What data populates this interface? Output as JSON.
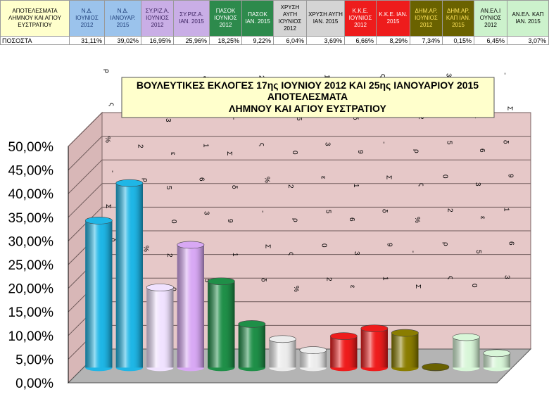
{
  "sheet": {
    "row_label_header": "ΑΠΟΤΕΛΕΣΜΑΤΑ ΛΗΜΝΟΥ ΚΑΙ ΑΓΙΟΥ ΕΥΣΤΡΑΤΙΟΥ",
    "row_label_values": "ΠΟΣΟΣΤΑ",
    "columns": [
      {
        "label": "Ν.Δ. ΙΟΥΝΙΟΣ 2012",
        "value": "31,11%",
        "bg": "#9bc3ec",
        "fg": "#1f3f7a"
      },
      {
        "label": "Ν.Δ. ΙΑΝΟΥΑΡ. 2015",
        "value": "39,02%",
        "bg": "#9bc3ec",
        "fg": "#1f3f7a"
      },
      {
        "label": "ΣΥ.ΡΙΖ.Α. ΙΟΥΝΙΟΣ 2012",
        "value": "16,95%",
        "bg": "#c9aee6",
        "fg": "#3b2260"
      },
      {
        "label": "ΣΥ.ΡΙΖ.Α. ΙΑΝ. 2015",
        "value": "25,96%",
        "bg": "#c9aee6",
        "fg": "#3b2260"
      },
      {
        "label": "ΠΑΣΟΚ ΙΟΥΝΙΟΣ 2012",
        "value": "18,25%",
        "bg": "#2d8a4c",
        "fg": "#ffffff"
      },
      {
        "label": "ΠΑΣΟΚ ΙΑΝ. 2015",
        "value": "9,22%",
        "bg": "#2d8a4c",
        "fg": "#ffffff"
      },
      {
        "label": "ΧΡΥΣΗ ΑΥΓΗ ΙΟΥΝΙΟΣ 2012",
        "value": "6,04%",
        "bg": "#d4d4d4",
        "fg": "#000000"
      },
      {
        "label": "ΧΡΥΣΗ ΑΥΓΗ ΙΑΝ. 2015",
        "value": "3,69%",
        "bg": "#d4d4d4",
        "fg": "#000000"
      },
      {
        "label": "Κ.Κ.Ε. ΙΟΥΝΙΟΣ 2012",
        "value": "6,66%",
        "bg": "#ee1c1c",
        "fg": "#ffffff"
      },
      {
        "label": "Κ.Κ.Ε. ΙΑΝ. 2015",
        "value": "8,29%",
        "bg": "#ee1c1c",
        "fg": "#ffffff"
      },
      {
        "label": "ΔΗΜ.ΑΡ. ΙΟΥΝΙΟΣ 2012",
        "value": "7,34%",
        "bg": "#6a6200",
        "fg": "#ffe45a"
      },
      {
        "label": "ΔΗΜ.ΑΡ. ΚΑΠ ΙΑΝ. 2015",
        "value": "0,15%",
        "bg": "#6a6200",
        "fg": "#ffe45a"
      },
      {
        "label": "ΑΝ.ΕΛ.Ι ΟΥΝΙΟΣ 2012",
        "value": "6,45%",
        "bg": "#ccf2cc",
        "fg": "#000000"
      },
      {
        "label": "ΑΝ.ΕΛ. ΚΑΠ ΙΑΝ. 2015",
        "value": "3,07%",
        "bg": "#ccf2cc",
        "fg": "#000000"
      }
    ]
  },
  "chart_data": {
    "type": "bar",
    "title_lines": [
      "ΒΟΥΛΕΥΤΙΚΕΣ ΕΚΛΟΓΕΣ 17ης ΙΟΥΝΙΟΥ 2012 ΚΑΙ 25ης ΙΑΝΟΥΑΡΙΟΥ 2015",
      "ΑΠΟΤΕΛΕΣΜΑΤΑ",
      "ΛΗΜΝΟΥ ΚΑΙ ΑΓΙΟΥ ΕΥΣΤΡΑΤΙΟΥ"
    ],
    "categories": [
      "Ν.Δ. ΙΟΥΝΙΟΣ 2012",
      "Ν.Δ. ΙΑΝΟΥΑΡ. 2015",
      "ΣΥ.ΡΙΖ.Α. ΙΟΥΝΙΟΣ 2012",
      "ΣΥ.ΡΙΖ.Α. ΙΑΝ. 2015",
      "ΠΑΣΟΚ ΙΟΥΝΙΟΣ 2012",
      "ΠΑΣΟΚ ΙΑΝ. 2015",
      "ΧΡΥΣΗ ΑΥΓΗ ΙΟΥΝΙΟΣ 2012",
      "ΧΡΥΣΗ ΑΥΓΗ ΙΑΝ. 2015",
      "Κ.Κ.Ε. ΙΟΥΝΙΟΣ 2012",
      "Κ.Κ.Ε. ΙΑΝ. 2015",
      "ΔΗΜ.ΑΡ. ΙΟΥΝΙΟΣ 2012",
      "ΔΗΜ.ΑΡ. ΚΑΠ ΙΑΝ. 2015",
      "ΑΝ.ΕΛ.Ι ΟΥΝΙΟΣ 2012",
      "ΑΝ.ΕΛ. ΚΑΠ ΙΑΝ. 2015"
    ],
    "values": [
      31.11,
      39.02,
      16.95,
      25.96,
      18.25,
      9.22,
      6.04,
      3.69,
      6.66,
      8.29,
      7.34,
      0.15,
      6.45,
      3.07
    ],
    "colors": [
      "#1fb6e6",
      "#1fb6e6",
      "#f0e2ff",
      "#d8a8f4",
      "#1f8f48",
      "#1f8f48",
      "#ececec",
      "#ececec",
      "#ee1c1c",
      "#ee1c1c",
      "#8a7d00",
      "#6a6200",
      "#d8f6d8",
      "#d8f6d8"
    ],
    "ylim": [
      0,
      50
    ],
    "yticks": [
      "0,00%",
      "5,00%",
      "10,00%",
      "15,00%",
      "20,00%",
      "25,00%",
      "30,00%",
      "35,00%",
      "40,00%",
      "45,00%",
      "50,00%"
    ],
    "grid": true,
    "wall_color": "#e6c8c8",
    "floor_color": "#b4b4b4"
  }
}
